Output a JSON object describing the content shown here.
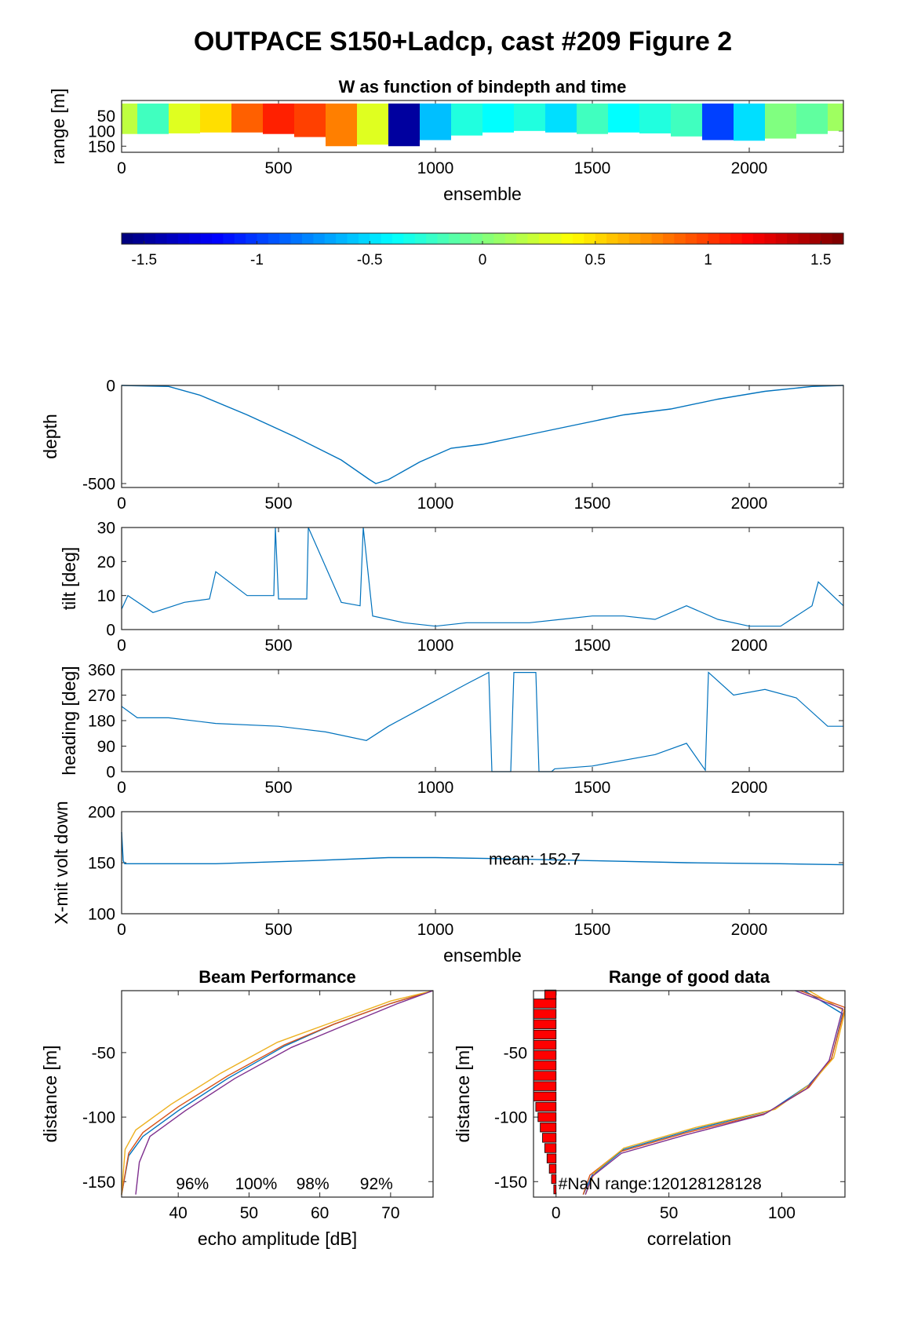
{
  "figure": {
    "title": "OUTPACE S150+Ladcp, cast #209 Figure 2"
  },
  "colors": {
    "line": "#0072BD",
    "beam1": "#0072BD",
    "beam2": "#D95319",
    "beam3": "#EDB120",
    "beam4": "#7E2F8E",
    "bar": "#FF0000",
    "axis": "#262626"
  },
  "chart_data": [
    {
      "id": "w-image",
      "type": "heatmap",
      "title": "W as function of bindepth and time",
      "xlabel": "ensemble",
      "ylabel": "range [m]",
      "xlim": [
        0,
        2300
      ],
      "ylim": [
        170,
        0
      ],
      "xticks": [
        0,
        500,
        1000,
        1500,
        2000
      ],
      "yticks": [
        50,
        100,
        150
      ],
      "colormap": "jet",
      "clim": [
        -1.6,
        1.6
      ],
      "colorbar_ticks": [
        -1.5,
        -1,
        -0.5,
        0,
        0.5,
        1,
        1.5
      ],
      "x": [
        0,
        100,
        200,
        300,
        400,
        500,
        600,
        700,
        800,
        900,
        1000,
        1100,
        1200,
        1300,
        1400,
        1500,
        1600,
        1700,
        1800,
        1900,
        2000,
        2100,
        2200,
        2300
      ],
      "w": [
        0.2,
        -0.2,
        0.3,
        0.5,
        0.9,
        1.1,
        1.0,
        0.8,
        0.3,
        -1.5,
        -0.6,
        -0.3,
        -0.4,
        -0.3,
        -0.5,
        -0.2,
        -0.4,
        -0.3,
        -0.2,
        -1.0,
        -0.5,
        0.0,
        -0.1,
        0.1
      ],
      "range_bottom": [
        110,
        110,
        108,
        105,
        105,
        110,
        120,
        150,
        145,
        150,
        130,
        115,
        105,
        100,
        105,
        110,
        105,
        108,
        118,
        130,
        132,
        125,
        110,
        100
      ]
    },
    {
      "id": "depth",
      "type": "line",
      "xlabel": "",
      "ylabel": "depth",
      "xlim": [
        0,
        2300
      ],
      "ylim": [
        -520,
        0
      ],
      "xticks": [
        0,
        500,
        1000,
        1500,
        2000
      ],
      "yticks": [
        0,
        -500
      ],
      "x": [
        0,
        150,
        250,
        400,
        550,
        700,
        790,
        810,
        850,
        950,
        1050,
        1150,
        1300,
        1450,
        1600,
        1750,
        1900,
        2050,
        2200,
        2300
      ],
      "y": [
        0,
        -5,
        -50,
        -150,
        -260,
        -380,
        -480,
        -500,
        -480,
        -390,
        -320,
        -300,
        -250,
        -200,
        -150,
        -120,
        -70,
        -30,
        -5,
        0
      ]
    },
    {
      "id": "tilt",
      "type": "line",
      "xlabel": "",
      "ylabel": "tilt [deg]",
      "xlim": [
        0,
        2300
      ],
      "ylim": [
        0,
        30
      ],
      "xticks": [
        0,
        500,
        1000,
        1500,
        2000
      ],
      "yticks": [
        0,
        10,
        20,
        30
      ],
      "x": [
        0,
        20,
        100,
        200,
        280,
        300,
        400,
        485,
        490,
        500,
        590,
        595,
        700,
        760,
        770,
        800,
        900,
        1000,
        1100,
        1200,
        1300,
        1400,
        1500,
        1600,
        1700,
        1800,
        1900,
        2000,
        2100,
        2200,
        2220,
        2300
      ],
      "y": [
        6,
        10,
        5,
        8,
        9,
        17,
        10,
        10,
        30,
        9,
        9,
        30,
        8,
        7,
        30,
        4,
        2,
        1,
        2,
        2,
        2,
        3,
        4,
        4,
        3,
        7,
        3,
        1,
        1,
        7,
        14,
        7
      ]
    },
    {
      "id": "heading",
      "type": "line",
      "xlabel": "",
      "ylabel": "heading [deg]",
      "xlim": [
        0,
        2300
      ],
      "ylim": [
        0,
        360
      ],
      "xticks": [
        0,
        500,
        1000,
        1500,
        2000
      ],
      "yticks": [
        0,
        90,
        180,
        270,
        360
      ],
      "x": [
        0,
        50,
        150,
        300,
        500,
        650,
        780,
        850,
        1000,
        1100,
        1170,
        1180,
        1240,
        1250,
        1320,
        1330,
        1370,
        1380,
        1500,
        1700,
        1800,
        1860,
        1870,
        1950,
        2050,
        2150,
        2250,
        2300
      ],
      "y": [
        230,
        190,
        190,
        170,
        160,
        140,
        110,
        160,
        250,
        310,
        350,
        0,
        0,
        350,
        350,
        0,
        0,
        10,
        20,
        60,
        100,
        5,
        350,
        270,
        290,
        260,
        160,
        160
      ]
    },
    {
      "id": "xmit-volt",
      "type": "line",
      "xlabel": "ensemble",
      "ylabel": "X-mit volt down",
      "xlim": [
        0,
        2300
      ],
      "ylim": [
        100,
        200
      ],
      "xticks": [
        0,
        500,
        1000,
        1500,
        2000
      ],
      "yticks": [
        100,
        150,
        200
      ],
      "annotation": "mean: 152.7",
      "x": [
        0,
        5,
        10,
        300,
        600,
        850,
        1000,
        1200,
        1500,
        1800,
        2100,
        2300
      ],
      "y": [
        180,
        152,
        149,
        149,
        152,
        155,
        155,
        154,
        152,
        150,
        149,
        148
      ]
    },
    {
      "id": "beam-performance",
      "type": "line",
      "title": "Beam Performance",
      "xlabel": "echo amplitude [dB]",
      "ylabel": "distance [m]",
      "xlim": [
        32,
        76
      ],
      "ylim": [
        -162,
        -2
      ],
      "xticks": [
        40,
        50,
        60,
        70
      ],
      "yticks": [
        -50,
        -100,
        -150
      ],
      "annotations": [
        "96%",
        "100%",
        "98%",
        "92%"
      ],
      "series": [
        {
          "color_key": "beam1",
          "x": [
            32,
            33,
            35,
            40,
            47,
            55,
            62,
            70,
            76
          ],
          "y": [
            -160,
            -130,
            -115,
            -95,
            -70,
            -45,
            -28,
            -12,
            -2
          ]
        },
        {
          "color_key": "beam2",
          "x": [
            32,
            33,
            35,
            40,
            47,
            55,
            62,
            70,
            76
          ],
          "y": [
            -160,
            -128,
            -112,
            -92,
            -68,
            -44,
            -28,
            -12,
            -2
          ]
        },
        {
          "color_key": "beam3",
          "x": [
            32,
            32.5,
            34,
            39,
            46,
            54,
            62,
            70,
            76
          ],
          "y": [
            -160,
            -125,
            -110,
            -90,
            -66,
            -42,
            -26,
            -10,
            -2
          ]
        },
        {
          "color_key": "beam4",
          "x": [
            34,
            34.5,
            36,
            41,
            48,
            56,
            63,
            71,
            76
          ],
          "y": [
            -160,
            -135,
            -115,
            -95,
            -70,
            -46,
            -30,
            -12,
            -2
          ]
        }
      ]
    },
    {
      "id": "range-good-data",
      "type": "line",
      "title": "Range of good data",
      "xlabel": "correlation",
      "ylabel": "distance [m]",
      "xlim": [
        -10,
        128
      ],
      "ylim": [
        -162,
        -2
      ],
      "xticks": [
        0,
        50,
        100
      ],
      "yticks": [
        -50,
        -100,
        -150
      ],
      "annotation": "#NaN range:120128128128",
      "bars": {
        "y": [
          -5,
          -12,
          -20,
          -28,
          -36,
          -44,
          -52,
          -60,
          -68,
          -76,
          -84,
          -92,
          -100,
          -108,
          -116,
          -124,
          -132,
          -140,
          -148,
          -156
        ],
        "values": [
          5,
          10,
          10,
          10,
          10,
          10,
          10,
          10,
          10,
          10,
          10,
          9,
          8,
          7,
          6,
          5,
          4,
          3,
          2,
          1
        ]
      },
      "series": [
        {
          "color_key": "beam1",
          "x": [
            12,
            16,
            30,
            60,
            95,
            112,
            122,
            127,
            110
          ],
          "y": [
            -160,
            -145,
            -125,
            -110,
            -95,
            -75,
            -55,
            -20,
            -2
          ]
        },
        {
          "color_key": "beam2",
          "x": [
            12,
            15,
            28,
            58,
            93,
            112,
            122,
            128,
            108
          ],
          "y": [
            -160,
            -145,
            -127,
            -112,
            -97,
            -77,
            -55,
            -15,
            -2
          ]
        },
        {
          "color_key": "beam3",
          "x": [
            13,
            17,
            30,
            62,
            97,
            113,
            123,
            128,
            112
          ],
          "y": [
            -160,
            -143,
            -124,
            -108,
            -94,
            -74,
            -54,
            -18,
            -2
          ]
        },
        {
          "color_key": "beam4",
          "x": [
            13,
            16,
            29,
            57,
            92,
            111,
            121,
            127,
            106
          ],
          "y": [
            -160,
            -146,
            -128,
            -114,
            -98,
            -78,
            -56,
            -16,
            -2
          ]
        }
      ]
    }
  ]
}
